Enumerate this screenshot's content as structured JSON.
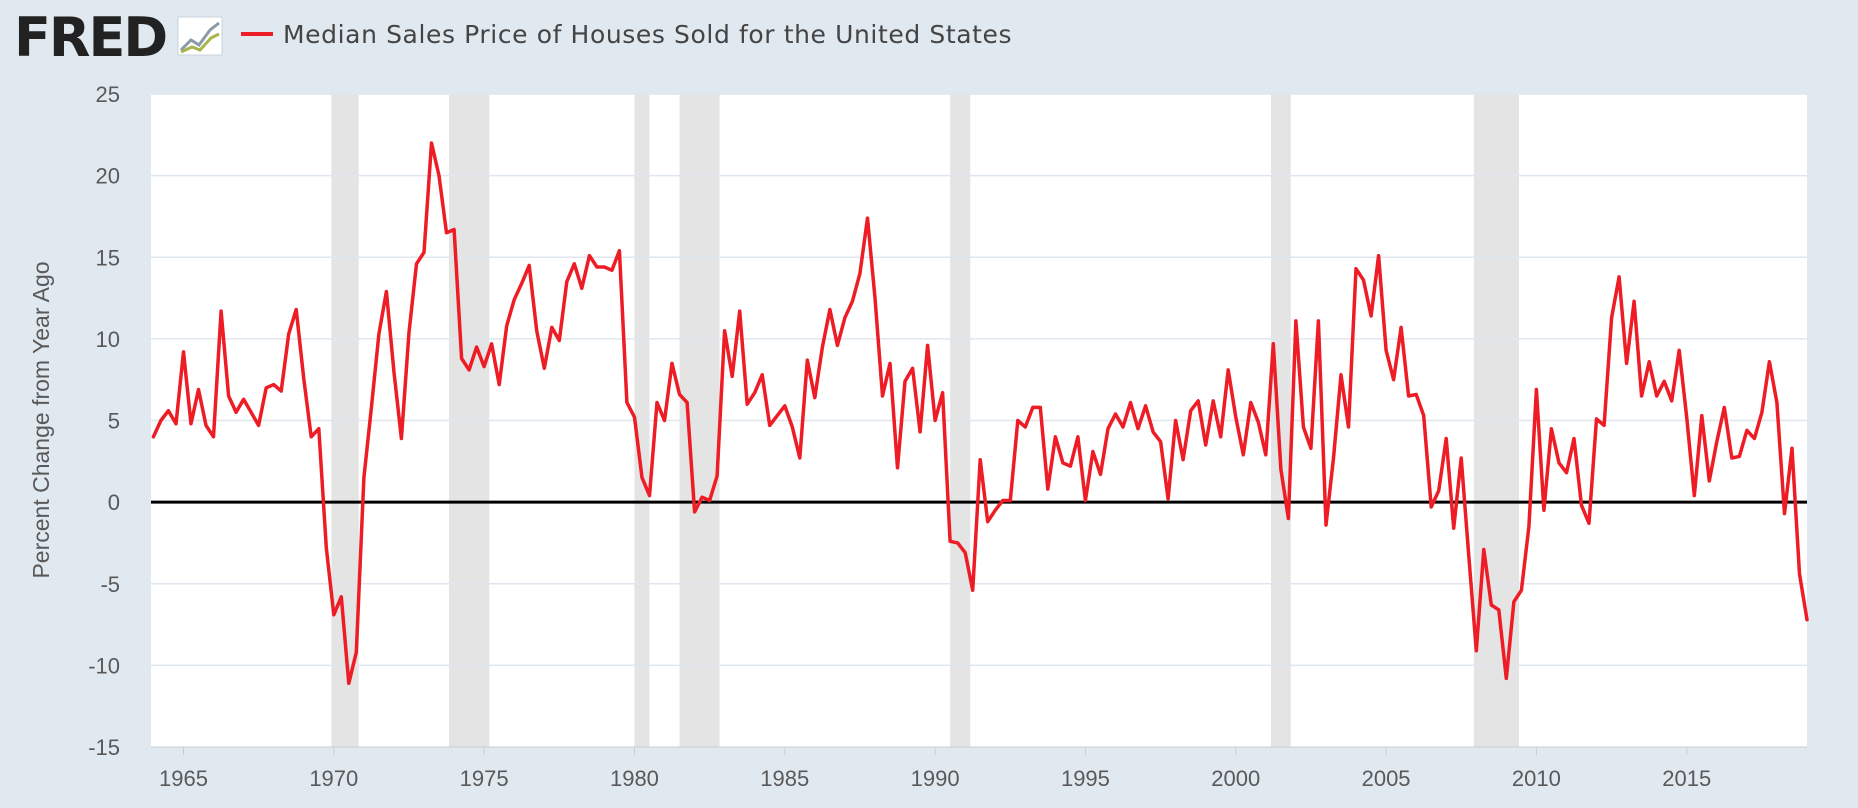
{
  "header": {
    "logo_text": "FRED",
    "logo_icon": "line-chart-icon"
  },
  "colors": {
    "series": "#ee1c25",
    "background": "#e1e9f0",
    "plot_background": "#ffffff",
    "recession": "#e4e4e4",
    "grid": "#dfe6ee",
    "zero_line": "#000000"
  },
  "chart_data": {
    "type": "line",
    "title": "",
    "xlabel": "",
    "ylabel": "Percent Change from Year Ago",
    "xlim": [
      1963.92,
      2019.0
    ],
    "ylim": [
      -15,
      25
    ],
    "x_ticks": [
      1965,
      1970,
      1975,
      1980,
      1985,
      1990,
      1995,
      2000,
      2005,
      2010,
      2015
    ],
    "y_ticks": [
      -15,
      -10,
      -5,
      0,
      5,
      10,
      15,
      20,
      25
    ],
    "grid": true,
    "legend": "top-left",
    "recessions": [
      [
        1969.92,
        1970.83
      ],
      [
        1973.83,
        1975.17
      ],
      [
        1980.0,
        1980.5
      ],
      [
        1981.5,
        1982.83
      ],
      [
        1990.5,
        1991.17
      ],
      [
        2001.17,
        2001.83
      ],
      [
        2007.92,
        2009.42
      ]
    ],
    "series": [
      {
        "name": "Median Sales Price of Houses Sold for the United States",
        "color": "#ee1c25",
        "x_start": 1964.0,
        "x_step": 0.25,
        "values": [
          4.0,
          5.0,
          5.6,
          4.8,
          9.2,
          4.8,
          6.9,
          4.7,
          4.0,
          11.7,
          6.5,
          5.5,
          6.3,
          5.5,
          4.7,
          7.0,
          7.2,
          6.8,
          10.3,
          11.8,
          7.6,
          4.0,
          4.5,
          -2.8,
          -6.9,
          -5.8,
          -11.1,
          -9.2,
          1.5,
          5.8,
          10.3,
          12.9,
          8.0,
          3.9,
          10.4,
          14.6,
          15.3,
          22.0,
          20.0,
          16.5,
          16.7,
          8.8,
          8.1,
          9.5,
          8.3,
          9.7,
          7.2,
          10.8,
          12.4,
          13.4,
          14.5,
          10.5,
          8.2,
          10.7,
          9.9,
          13.5,
          14.6,
          13.1,
          15.1,
          14.4,
          14.4,
          14.2,
          15.4,
          6.1,
          5.2,
          1.5,
          0.4,
          6.1,
          5.0,
          8.5,
          6.6,
          6.1,
          -0.6,
          0.3,
          0.1,
          1.6,
          10.5,
          7.7,
          11.7,
          6.0,
          6.7,
          7.8,
          4.7,
          5.3,
          5.9,
          4.6,
          2.7,
          8.7,
          6.4,
          9.5,
          11.8,
          9.6,
          11.3,
          12.3,
          14.0,
          17.4,
          12.5,
          6.5,
          8.5,
          2.1,
          7.4,
          8.2,
          4.3,
          9.6,
          5.0,
          6.7,
          -2.4,
          -2.5,
          -3.1,
          -5.4,
          2.6,
          -1.2,
          -0.5,
          0.1,
          0.1,
          5.0,
          4.6,
          5.8,
          5.8,
          0.8,
          4.0,
          2.4,
          2.2,
          4.0,
          0.1,
          3.1,
          1.7,
          4.5,
          5.4,
          4.6,
          6.1,
          4.5,
          5.9,
          4.3,
          3.7,
          0.2,
          5.0,
          2.6,
          5.6,
          6.2,
          3.5,
          6.2,
          4.0,
          8.1,
          5.2,
          2.9,
          6.1,
          4.9,
          2.9,
          9.7,
          2.0,
          -1.0,
          11.1,
          4.6,
          3.3,
          11.1,
          -1.4,
          2.7,
          7.8,
          4.6,
          14.3,
          13.6,
          11.4,
          15.1,
          9.3,
          7.5,
          10.7,
          6.5,
          6.6,
          5.3,
          -0.3,
          0.7,
          3.9,
          -1.6,
          2.7,
          -3.3,
          -9.1,
          -2.9,
          -6.3,
          -6.6,
          -10.8,
          -6.1,
          -5.4,
          -1.5,
          6.9,
          -0.5,
          4.5,
          2.4,
          1.8,
          3.9,
          -0.2,
          -1.3,
          5.1,
          4.7,
          11.3,
          13.8,
          8.5,
          12.3,
          6.5,
          8.6,
          6.5,
          7.4,
          6.2,
          9.3,
          5.2,
          0.4,
          5.3,
          1.3,
          3.7,
          5.8,
          2.7,
          2.8,
          4.4,
          3.9,
          5.5,
          8.6,
          6.1,
          -0.7,
          3.3,
          -4.4,
          -7.2
        ]
      }
    ]
  }
}
